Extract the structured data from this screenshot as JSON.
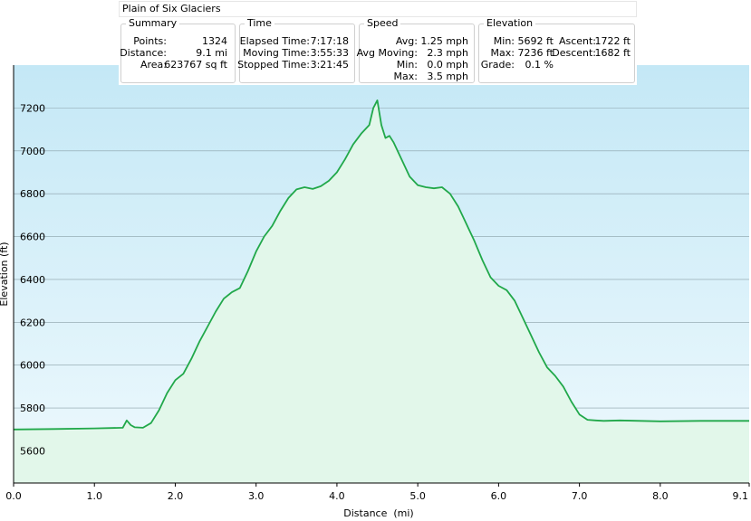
{
  "window": {
    "title": "Plain of Six Glaciers"
  },
  "summary": {
    "title": "Summary",
    "rows": [
      {
        "label": "Points:",
        "value": "1324"
      },
      {
        "label": "Distance:",
        "value": "9.1 mi"
      },
      {
        "label": "Area:",
        "value": "623767 sq ft"
      }
    ]
  },
  "time": {
    "title": "Time",
    "rows": [
      {
        "label": "Elapsed Time:",
        "value": "7:17:18"
      },
      {
        "label": "Moving Time:",
        "value": "3:55:33"
      },
      {
        "label": "Stopped Time:",
        "value": "3:21:45"
      }
    ]
  },
  "speed": {
    "title": "Speed",
    "rows": [
      {
        "label": "Avg:",
        "value": "1.25 mph"
      },
      {
        "label": "Avg Moving:",
        "value": "2.3 mph"
      },
      {
        "label": "Min:",
        "value": "0.0 mph"
      },
      {
        "label": "Max:",
        "value": "3.5 mph"
      }
    ]
  },
  "elevation": {
    "title": "Elevation",
    "rows": [
      {
        "label": "Min:",
        "value": "5692 ft"
      },
      {
        "label": "Max:",
        "value": "7236 ft"
      },
      {
        "label": "Grade:",
        "value": "0.1 %"
      }
    ],
    "rows2": [
      {
        "label": "Ascent:",
        "value": "1722 ft"
      },
      {
        "label": "Descent:",
        "value": "1682 ft"
      }
    ]
  },
  "chart_data": {
    "type": "area",
    "xlabel": "Distance  (mi)",
    "ylabel": "Elevation (ft)",
    "xlim": [
      0,
      9.1
    ],
    "ylim": [
      5450,
      7400
    ],
    "xticks": [
      0,
      1,
      2,
      3,
      4,
      5,
      6,
      7,
      8,
      9.1
    ],
    "xtick_labels": [
      "0.0",
      "1.0",
      "2.0",
      "3.0",
      "4.0",
      "5.0",
      "6.0",
      "7.0",
      "8.0",
      "9.1"
    ],
    "yticks": [
      5600,
      5800,
      6000,
      6200,
      6400,
      6600,
      6800,
      7000,
      7200
    ],
    "ytick_labels": [
      "5600",
      "5800",
      "6000",
      "6200",
      "6400",
      "6600",
      "6800",
      "7000",
      "7200"
    ],
    "grid": true,
    "line_color": "#21a84a",
    "fill_color": "#e2f7ea",
    "background_top": "#c4e8f6",
    "background_bottom": "#eef9fd",
    "series": [
      {
        "x": [
          0,
          0.5,
          1.0,
          1.35,
          1.4,
          1.45,
          1.5,
          1.6,
          1.7,
          1.8,
          1.9,
          2.0,
          2.1,
          2.2,
          2.3,
          2.4,
          2.5,
          2.6,
          2.7,
          2.8,
          2.9,
          3.0,
          3.1,
          3.2,
          3.3,
          3.4,
          3.5,
          3.6,
          3.7,
          3.8,
          3.9,
          4.0,
          4.1,
          4.2,
          4.3,
          4.4,
          4.45,
          4.5,
          4.55,
          4.6,
          4.65,
          4.7,
          4.8,
          4.9,
          5.0,
          5.1,
          5.2,
          5.3,
          5.4,
          5.5,
          5.6,
          5.7,
          5.8,
          5.9,
          6.0,
          6.1,
          6.2,
          6.3,
          6.4,
          6.5,
          6.6,
          6.7,
          6.8,
          6.9,
          7.0,
          7.1,
          7.2,
          7.3,
          7.5,
          8.0,
          8.5,
          9.1
        ],
        "y": [
          5700,
          5702,
          5705,
          5708,
          5742,
          5720,
          5710,
          5708,
          5730,
          5790,
          5870,
          5930,
          5960,
          6030,
          6110,
          6180,
          6250,
          6310,
          6340,
          6360,
          6440,
          6530,
          6600,
          6650,
          6720,
          6780,
          6820,
          6830,
          6822,
          6835,
          6860,
          6900,
          6960,
          7030,
          7080,
          7120,
          7200,
          7236,
          7120,
          7060,
          7070,
          7040,
          6960,
          6880,
          6840,
          6830,
          6825,
          6830,
          6800,
          6740,
          6660,
          6580,
          6490,
          6410,
          6370,
          6350,
          6300,
          6220,
          6140,
          6060,
          5990,
          5950,
          5900,
          5830,
          5770,
          5745,
          5742,
          5740,
          5742,
          5738,
          5740,
          5740
        ]
      }
    ]
  }
}
